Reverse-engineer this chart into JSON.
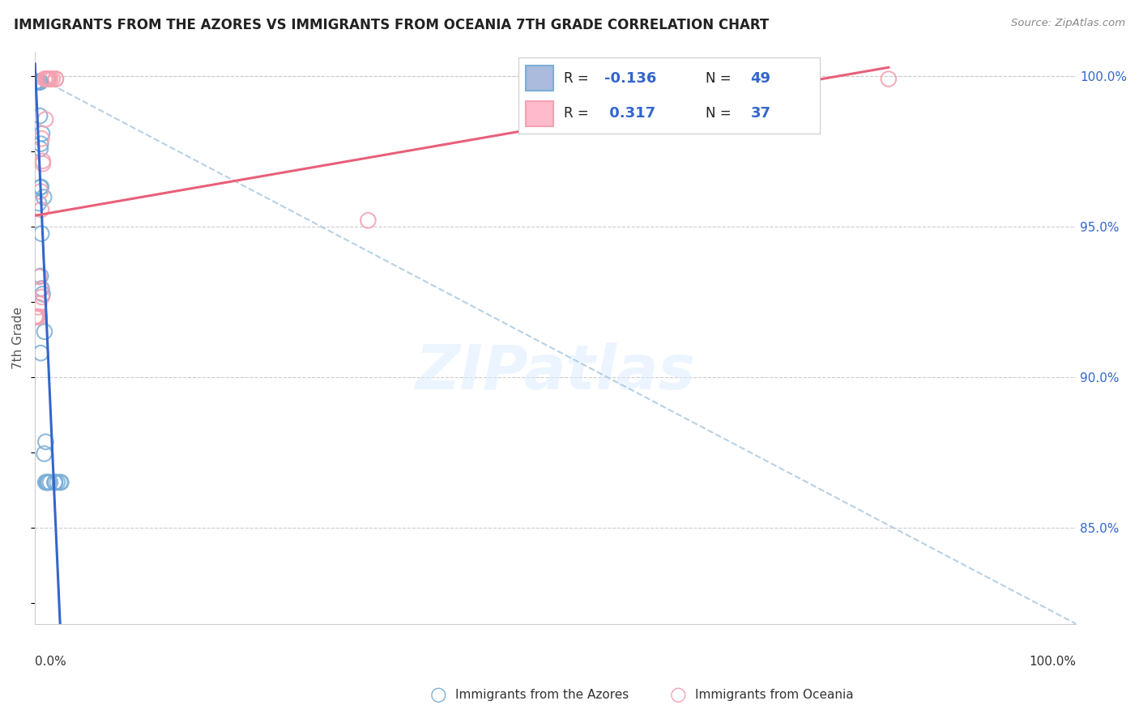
{
  "title": "IMMIGRANTS FROM THE AZORES VS IMMIGRANTS FROM OCEANIA 7TH GRADE CORRELATION CHART",
  "source": "Source: ZipAtlas.com",
  "ylabel": "7th Grade",
  "legend_blue_label": "Immigrants from the Azores",
  "legend_pink_label": "Immigrants from Oceania",
  "xlim": [
    0.0,
    1.0
  ],
  "ylim_low": 0.818,
  "ylim_high": 1.008,
  "yticks": [
    0.85,
    0.9,
    0.95,
    1.0
  ],
  "ytick_labels": [
    "85.0%",
    "90.0%",
    "95.0%",
    "100.0%"
  ],
  "background_color": "#ffffff",
  "blue_color": "#7aaed6",
  "pink_color": "#f4a0b0",
  "blue_line_color": "#3366cc",
  "pink_line_color": "#e8607a",
  "dash_line_color": "#b0cce0",
  "grid_color": "#cccccc",
  "title_color": "#222222",
  "source_color": "#888888",
  "right_tick_color": "#3366cc",
  "legend_r_color": "#3366cc",
  "legend_n_color": "#3366cc",
  "legend_label_color": "#222222"
}
